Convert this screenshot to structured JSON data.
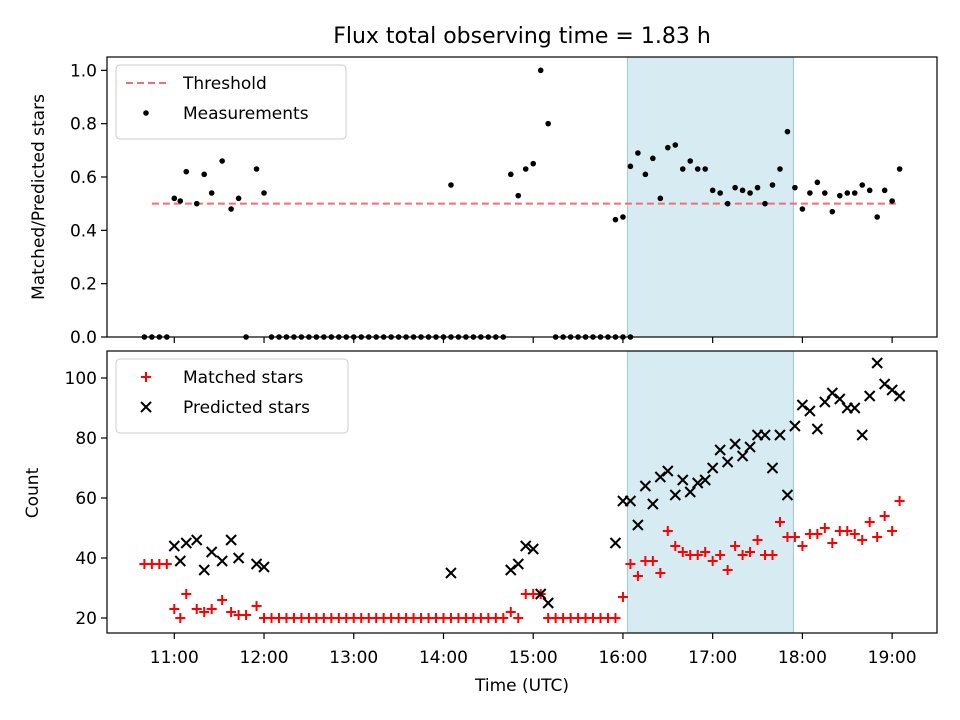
{
  "chart_data": [
    {
      "type": "scatter",
      "title": "Flux total observing time = 1.83 h",
      "ylabel": "Matched/Predicted stars",
      "xlabel": "",
      "xlim": [
        "10:15",
        "19:30"
      ],
      "ylim": [
        0,
        1.05
      ],
      "yticks": [
        "0.0",
        "0.2",
        "0.4",
        "0.6",
        "0.8",
        "1.0"
      ],
      "legend_position": "top-left",
      "highlight_span": [
        "16:03",
        "17:54"
      ],
      "highlight_color": "#add8e6",
      "threshold": {
        "name": "Threshold",
        "value": 0.5,
        "x_range": [
          "10:45",
          "19:05"
        ],
        "color": "#f07070"
      },
      "series": [
        {
          "name": "Measurements",
          "color": "#000000",
          "points": [
            [
              "10:40",
              0
            ],
            [
              "10:45",
              0
            ],
            [
              "10:50",
              0
            ],
            [
              "10:55",
              0
            ],
            [
              "11:00",
              0.52
            ],
            [
              "11:04",
              0.51
            ],
            [
              "11:08",
              0.62
            ],
            [
              "11:15",
              0.5
            ],
            [
              "11:20",
              0.61
            ],
            [
              "11:25",
              0.54
            ],
            [
              "11:32",
              0.66
            ],
            [
              "11:38",
              0.48
            ],
            [
              "11:43",
              0.52
            ],
            [
              "11:48",
              0
            ],
            [
              "11:55",
              0.63
            ],
            [
              "12:00",
              0.54
            ],
            [
              "12:05",
              0
            ],
            [
              "12:10",
              0
            ],
            [
              "12:15",
              0
            ],
            [
              "12:20",
              0
            ],
            [
              "12:25",
              0
            ],
            [
              "12:30",
              0
            ],
            [
              "12:35",
              0
            ],
            [
              "12:40",
              0
            ],
            [
              "12:45",
              0
            ],
            [
              "12:50",
              0
            ],
            [
              "12:55",
              0
            ],
            [
              "13:00",
              0
            ],
            [
              "13:05",
              0
            ],
            [
              "13:10",
              0
            ],
            [
              "13:15",
              0
            ],
            [
              "13:20",
              0
            ],
            [
              "13:25",
              0
            ],
            [
              "13:30",
              0
            ],
            [
              "13:35",
              0
            ],
            [
              "13:40",
              0
            ],
            [
              "13:45",
              0
            ],
            [
              "13:50",
              0
            ],
            [
              "13:55",
              0
            ],
            [
              "14:00",
              0
            ],
            [
              "14:05",
              0
            ],
            [
              "14:10",
              0
            ],
            [
              "14:05",
              0.57
            ],
            [
              "14:15",
              0
            ],
            [
              "14:20",
              0
            ],
            [
              "14:25",
              0
            ],
            [
              "14:30",
              0
            ],
            [
              "14:35",
              0
            ],
            [
              "14:40",
              0
            ],
            [
              "14:45",
              0.61
            ],
            [
              "14:50",
              0.53
            ],
            [
              "14:55",
              0.63
            ],
            [
              "15:00",
              0.65
            ],
            [
              "15:05",
              1.0
            ],
            [
              "15:10",
              0.8
            ],
            [
              "15:15",
              0
            ],
            [
              "15:20",
              0
            ],
            [
              "15:25",
              0
            ],
            [
              "15:30",
              0
            ],
            [
              "15:35",
              0
            ],
            [
              "15:40",
              0
            ],
            [
              "15:45",
              0
            ],
            [
              "15:50",
              0
            ],
            [
              "15:55",
              0
            ],
            [
              "16:00",
              0
            ],
            [
              "16:05",
              0
            ],
            [
              "15:55",
              0.44
            ],
            [
              "16:00",
              0.45
            ],
            [
              "16:05",
              0.64
            ],
            [
              "16:10",
              0.69
            ],
            [
              "16:15",
              0.61
            ],
            [
              "16:20",
              0.67
            ],
            [
              "16:25",
              0.52
            ],
            [
              "16:30",
              0.71
            ],
            [
              "16:35",
              0.72
            ],
            [
              "16:40",
              0.63
            ],
            [
              "16:45",
              0.66
            ],
            [
              "16:50",
              0.63
            ],
            [
              "16:55",
              0.63
            ],
            [
              "17:00",
              0.55
            ],
            [
              "17:05",
              0.54
            ],
            [
              "17:10",
              0.5
            ],
            [
              "17:15",
              0.56
            ],
            [
              "17:20",
              0.55
            ],
            [
              "17:25",
              0.54
            ],
            [
              "17:30",
              0.56
            ],
            [
              "17:35",
              0.5
            ],
            [
              "17:40",
              0.57
            ],
            [
              "17:45",
              0.63
            ],
            [
              "17:50",
              0.77
            ],
            [
              "17:55",
              0.56
            ],
            [
              "18:00",
              0.48
            ],
            [
              "18:05",
              0.54
            ],
            [
              "18:10",
              0.58
            ],
            [
              "18:15",
              0.54
            ],
            [
              "18:20",
              0.47
            ],
            [
              "18:25",
              0.53
            ],
            [
              "18:30",
              0.54
            ],
            [
              "18:35",
              0.54
            ],
            [
              "18:40",
              0.57
            ],
            [
              "18:45",
              0.55
            ],
            [
              "18:50",
              0.45
            ],
            [
              "18:55",
              0.55
            ],
            [
              "19:00",
              0.51
            ],
            [
              "19:05",
              0.63
            ]
          ]
        }
      ]
    },
    {
      "type": "scatter",
      "ylabel": "Count",
      "xlabel": "Time (UTC)",
      "xlim": [
        "10:15",
        "19:30"
      ],
      "ylim": [
        15,
        109
      ],
      "yticks": [
        "20",
        "40",
        "60",
        "80",
        "100"
      ],
      "xticks": [
        "11:00",
        "12:00",
        "13:00",
        "14:00",
        "15:00",
        "16:00",
        "17:00",
        "18:00",
        "19:00"
      ],
      "legend_position": "top-left",
      "highlight_span": [
        "16:03",
        "17:54"
      ],
      "series": [
        {
          "name": "Matched stars",
          "color": "#ff0000",
          "marker": "plus",
          "points": [
            [
              "10:40",
              38
            ],
            [
              "10:45",
              38
            ],
            [
              "10:50",
              38
            ],
            [
              "10:55",
              38
            ],
            [
              "11:00",
              23
            ],
            [
              "11:04",
              20
            ],
            [
              "11:08",
              28
            ],
            [
              "11:15",
              23
            ],
            [
              "11:20",
              22
            ],
            [
              "11:25",
              23
            ],
            [
              "11:32",
              26
            ],
            [
              "11:38",
              22
            ],
            [
              "11:43",
              21
            ],
            [
              "11:48",
              21
            ],
            [
              "11:55",
              24
            ],
            [
              "12:00",
              20
            ],
            [
              "12:05",
              20
            ],
            [
              "12:10",
              20
            ],
            [
              "12:15",
              20
            ],
            [
              "12:20",
              20
            ],
            [
              "12:25",
              20
            ],
            [
              "12:30",
              20
            ],
            [
              "12:35",
              20
            ],
            [
              "12:40",
              20
            ],
            [
              "12:45",
              20
            ],
            [
              "12:50",
              20
            ],
            [
              "12:55",
              20
            ],
            [
              "13:00",
              20
            ],
            [
              "13:05",
              20
            ],
            [
              "13:10",
              20
            ],
            [
              "13:15",
              20
            ],
            [
              "13:20",
              20
            ],
            [
              "13:25",
              20
            ],
            [
              "13:30",
              20
            ],
            [
              "13:35",
              20
            ],
            [
              "13:40",
              20
            ],
            [
              "13:45",
              20
            ],
            [
              "13:50",
              20
            ],
            [
              "13:55",
              20
            ],
            [
              "14:00",
              20
            ],
            [
              "14:05",
              20
            ],
            [
              "14:10",
              20
            ],
            [
              "14:15",
              20
            ],
            [
              "14:20",
              20
            ],
            [
              "14:25",
              20
            ],
            [
              "14:30",
              20
            ],
            [
              "14:35",
              20
            ],
            [
              "14:40",
              20
            ],
            [
              "14:45",
              22
            ],
            [
              "14:50",
              20
            ],
            [
              "14:55",
              28
            ],
            [
              "15:00",
              28
            ],
            [
              "15:05",
              28
            ],
            [
              "15:10",
              20
            ],
            [
              "15:15",
              20
            ],
            [
              "15:20",
              20
            ],
            [
              "15:25",
              20
            ],
            [
              "15:30",
              20
            ],
            [
              "15:35",
              20
            ],
            [
              "15:40",
              20
            ],
            [
              "15:45",
              20
            ],
            [
              "15:50",
              20
            ],
            [
              "15:55",
              20
            ],
            [
              "16:00",
              27
            ],
            [
              "16:05",
              38
            ],
            [
              "16:10",
              34
            ],
            [
              "16:15",
              39
            ],
            [
              "16:20",
              39
            ],
            [
              "16:25",
              35
            ],
            [
              "16:30",
              49
            ],
            [
              "16:35",
              44
            ],
            [
              "16:40",
              42
            ],
            [
              "16:45",
              41
            ],
            [
              "16:50",
              41
            ],
            [
              "16:55",
              42
            ],
            [
              "17:00",
              39
            ],
            [
              "17:05",
              41
            ],
            [
              "17:10",
              36
            ],
            [
              "17:15",
              44
            ],
            [
              "17:20",
              41
            ],
            [
              "17:25",
              42
            ],
            [
              "17:30",
              46
            ],
            [
              "17:35",
              41
            ],
            [
              "17:40",
              41
            ],
            [
              "17:45",
              52
            ],
            [
              "17:50",
              47
            ],
            [
              "17:55",
              47
            ],
            [
              "18:00",
              44
            ],
            [
              "18:05",
              48
            ],
            [
              "18:10",
              48
            ],
            [
              "18:15",
              50
            ],
            [
              "18:20",
              45
            ],
            [
              "18:25",
              49
            ],
            [
              "18:30",
              49
            ],
            [
              "18:35",
              48
            ],
            [
              "18:40",
              46
            ],
            [
              "18:45",
              52
            ],
            [
              "18:50",
              47
            ],
            [
              "18:55",
              54
            ],
            [
              "19:00",
              49
            ],
            [
              "19:05",
              59
            ]
          ]
        },
        {
          "name": "Predicted stars",
          "color": "#000000",
          "marker": "x",
          "points": [
            [
              "11:00",
              44
            ],
            [
              "11:04",
              39
            ],
            [
              "11:08",
              45
            ],
            [
              "11:15",
              46
            ],
            [
              "11:20",
              36
            ],
            [
              "11:25",
              42
            ],
            [
              "11:32",
              39
            ],
            [
              "11:38",
              46
            ],
            [
              "11:43",
              40
            ],
            [
              "11:55",
              38
            ],
            [
              "12:00",
              37
            ],
            [
              "14:05",
              35
            ],
            [
              "14:45",
              36
            ],
            [
              "14:50",
              38
            ],
            [
              "14:55",
              44
            ],
            [
              "15:00",
              43
            ],
            [
              "15:05",
              28
            ],
            [
              "15:10",
              25
            ],
            [
              "15:55",
              45
            ],
            [
              "16:00",
              59
            ],
            [
              "16:05",
              59
            ],
            [
              "16:10",
              51
            ],
            [
              "16:15",
              64
            ],
            [
              "16:20",
              58
            ],
            [
              "16:25",
              67
            ],
            [
              "16:30",
              69
            ],
            [
              "16:35",
              61
            ],
            [
              "16:40",
              66
            ],
            [
              "16:45",
              62
            ],
            [
              "16:50",
              65
            ],
            [
              "16:55",
              66
            ],
            [
              "17:00",
              70
            ],
            [
              "17:05",
              76
            ],
            [
              "17:10",
              72
            ],
            [
              "17:15",
              78
            ],
            [
              "17:20",
              74
            ],
            [
              "17:25",
              77
            ],
            [
              "17:30",
              81
            ],
            [
              "17:35",
              81
            ],
            [
              "17:40",
              70
            ],
            [
              "17:45",
              81
            ],
            [
              "17:50",
              61
            ],
            [
              "17:55",
              84
            ],
            [
              "18:00",
              91
            ],
            [
              "18:05",
              89
            ],
            [
              "18:10",
              83
            ],
            [
              "18:15",
              92
            ],
            [
              "18:20",
              95
            ],
            [
              "18:25",
              93
            ],
            [
              "18:30",
              90
            ],
            [
              "18:35",
              90
            ],
            [
              "18:40",
              81
            ],
            [
              "18:45",
              94
            ],
            [
              "18:50",
              105
            ],
            [
              "18:55",
              98
            ],
            [
              "19:00",
              96
            ],
            [
              "19:05",
              94
            ]
          ]
        }
      ]
    }
  ]
}
